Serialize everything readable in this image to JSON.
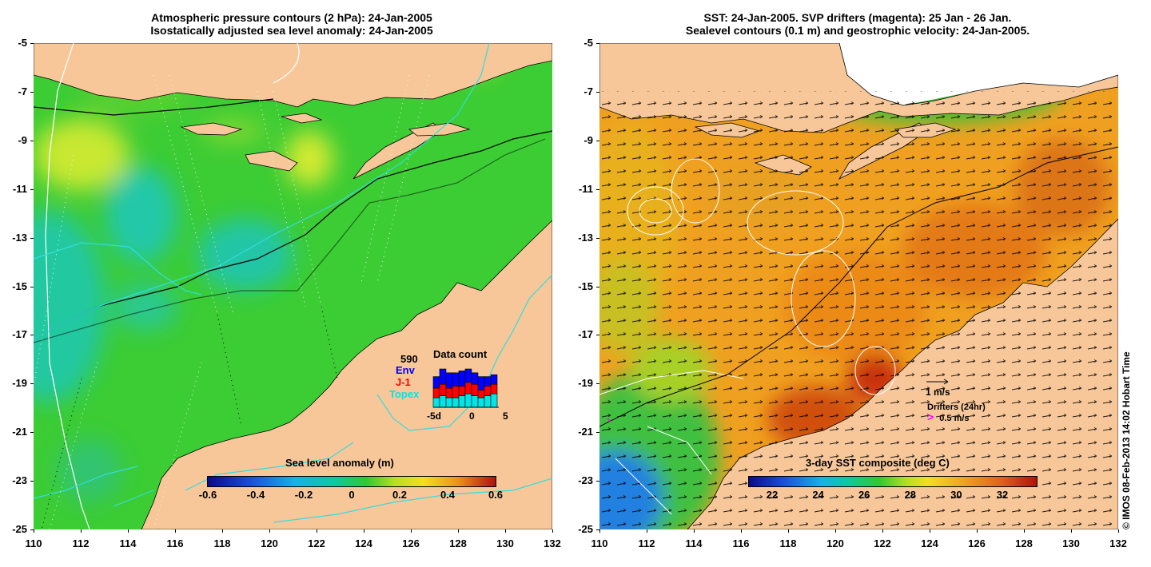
{
  "left_panel": {
    "title_line1": "Atmospheric pressure contours (2 hPa): 24-Jan-2005",
    "title_line2": "Isostatically adjusted sea level anomaly: 24-Jan-2005",
    "colorbar_title": "Sea level anomaly (m)",
    "colorbar_ticks": [
      "-0.6",
      "-0.4",
      "-0.2",
      "0",
      "0.2",
      "0.4",
      "0.6"
    ],
    "inset": {
      "title": "Data count",
      "count": "590",
      "legend": [
        "Env",
        "J-1",
        "Topex"
      ],
      "legend_colors": [
        "#0000ff",
        "#ff0000",
        "#00e5e5"
      ],
      "x_ticks": [
        "-5d",
        "0",
        "5"
      ],
      "bars_topex": [
        5,
        6,
        5,
        5,
        6,
        7,
        6,
        5,
        6,
        7
      ],
      "bars_j1": [
        5,
        6,
        5,
        6,
        5,
        6,
        6,
        4,
        5,
        5
      ],
      "bars_env": [
        6,
        8,
        8,
        7,
        8,
        7,
        6,
        7,
        5,
        5
      ]
    }
  },
  "right_panel": {
    "title_line1": "SST: 24-Jan-2005. SVP drifters (magenta): 25 Jan - 26 Jan.",
    "title_line2": "Sealevel contours (0.1 m) and geostrophic velocity: 24-Jan-2005.",
    "colorbar_title": "3-day SST composite (deg C)",
    "colorbar_ticks": [
      "22",
      "24",
      "26",
      "28",
      "30",
      "32"
    ],
    "velocity_scale": "1 m/s",
    "drifters_label": "Drifters (24hr)",
    "drifters_scale": "0.5 m/s",
    "drifter_symbol": ">"
  },
  "y_ticks": [
    "-5",
    "-7",
    "-9",
    "-11",
    "-13",
    "-15",
    "-17",
    "-19",
    "-21",
    "-23",
    "-25"
  ],
  "x_ticks": [
    "110",
    "112",
    "114",
    "116",
    "118",
    "120",
    "122",
    "124",
    "126",
    "128",
    "130",
    "132"
  ],
  "copyright": "© IMOS 08-Feb-2013 14:02 Hobart Time",
  "colors": {
    "land": "#f7c79a",
    "ocean_base": "#33cc33",
    "sst_warm": "#f0a020",
    "contour_cyan": "#33dddd"
  }
}
